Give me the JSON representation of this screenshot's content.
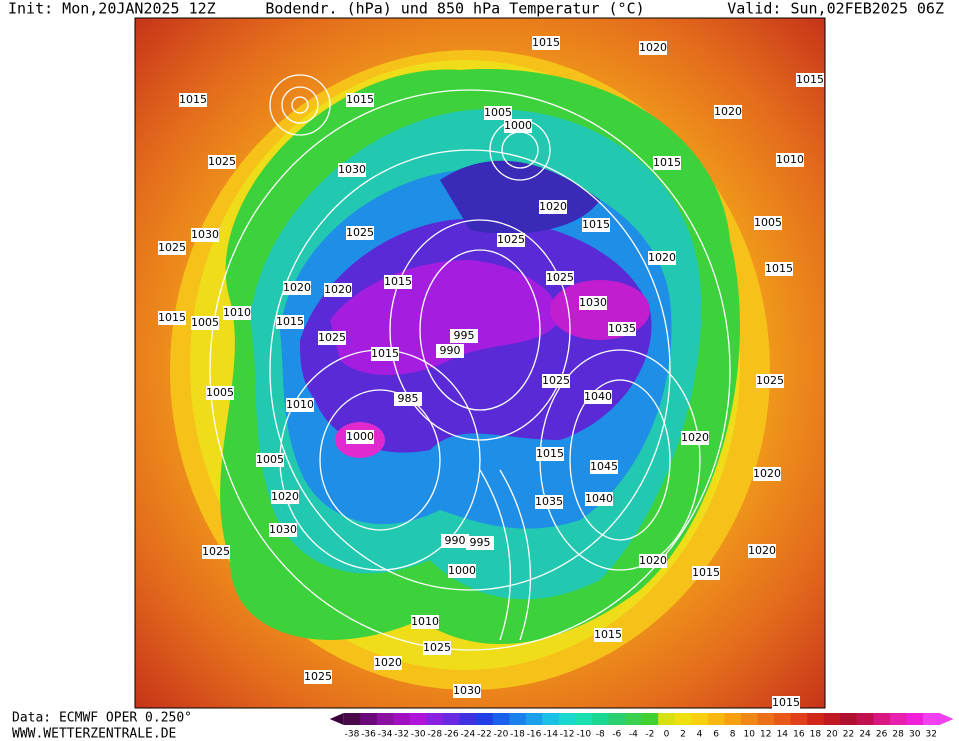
{
  "header": {
    "init": "Init: Mon,20JAN2025 12Z",
    "title": "Bodendr. (hPa) und 850 hPa Temperatur (°C)",
    "valid": "Valid: Sun,02FEB2025 06Z"
  },
  "footer": {
    "source": "Data: ECMWF OPER 0.250°",
    "site": "WWW.WETTERZENTRALE.DE"
  },
  "colorbar": {
    "ticks": [
      -38,
      -36,
      -34,
      -32,
      -30,
      -28,
      -26,
      -24,
      -22,
      -20,
      -18,
      -16,
      -14,
      -12,
      -10,
      -8,
      -6,
      -4,
      -2,
      0,
      2,
      4,
      6,
      8,
      10,
      12,
      14,
      16,
      18,
      20,
      22,
      24,
      26,
      28,
      30,
      32
    ]
  },
  "isobar_labels": [
    "1015",
    "1015",
    "1030",
    "1025",
    "1025",
    "1030",
    "1020",
    "1015",
    "1005",
    "1010",
    "1015",
    "1025",
    "1015",
    "995",
    "990",
    "1010",
    "1000",
    "985",
    "1005",
    "1020",
    "1030",
    "1025",
    "990",
    "995",
    "1000",
    "1010",
    "1025",
    "1020",
    "1025",
    "1030",
    "1015",
    "1020",
    "1005",
    "1000",
    "1015",
    "1020",
    "1010",
    "1015",
    "1005",
    "1015",
    "1020",
    "1030",
    "1035",
    "1025",
    "1025",
    "1040",
    "1020",
    "1045",
    "1040",
    "1035",
    "1015",
    "1020",
    "1015",
    "1020",
    "1020",
    "1015",
    "1015",
    "1025",
    "1025",
    "1015",
    "1020",
    "1025",
    "1015",
    "1020",
    "1005"
  ]
}
